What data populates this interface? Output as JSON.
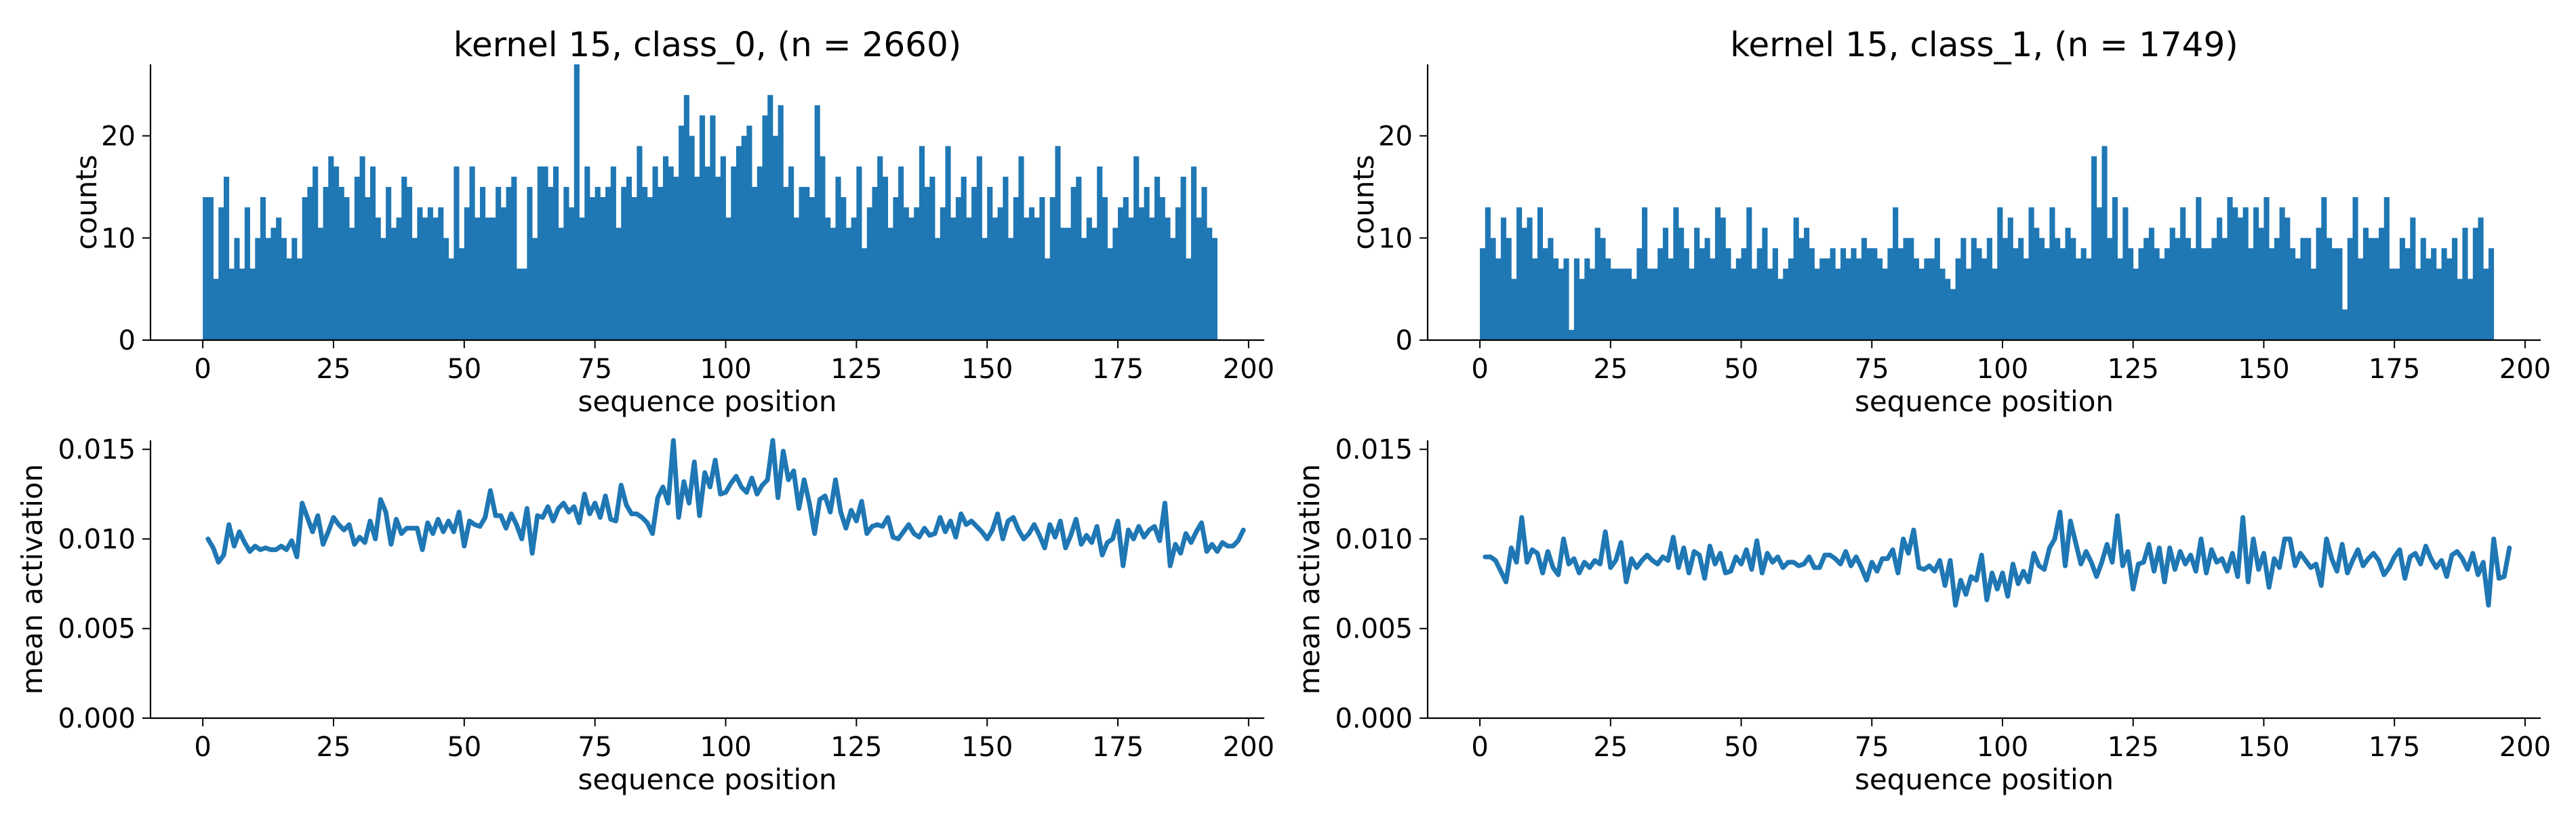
{
  "chart_data": [
    {
      "id": "hist_class0",
      "type": "bar",
      "title": "kernel 15, class_0, (n = 2660)",
      "xlabel": "sequence position",
      "ylabel": "counts",
      "xlim": [
        -10,
        203
      ],
      "ylim": [
        0,
        27
      ],
      "xticks": [
        0,
        25,
        50,
        75,
        100,
        125,
        150,
        175,
        200
      ],
      "yticks": [
        0,
        10,
        20
      ],
      "x_start": 0,
      "bin_width": 1,
      "color": "#1f77b4",
      "values": [
        14,
        14,
        6,
        13,
        16,
        7,
        10,
        7,
        13,
        7,
        10,
        14,
        10,
        11,
        12,
        10,
        8,
        10,
        8,
        14,
        15,
        17,
        11,
        15,
        18,
        17,
        15,
        14,
        11,
        16,
        18,
        14,
        17,
        12,
        10,
        15,
        11,
        12,
        16,
        15,
        10,
        13,
        12,
        13,
        12,
        13,
        10,
        8,
        17,
        9,
        13,
        17,
        12,
        15,
        12,
        12,
        15,
        13,
        15,
        16,
        7,
        7,
        15,
        10,
        17,
        17,
        15,
        17,
        11,
        15,
        13,
        27,
        12,
        17,
        14,
        15,
        14,
        15,
        17,
        11,
        15,
        16,
        14,
        19,
        15,
        14,
        17,
        15,
        18,
        17,
        16,
        21,
        24,
        20,
        16,
        22,
        17,
        22,
        16,
        18,
        12,
        17,
        19,
        20,
        21,
        15,
        17,
        22,
        24,
        20,
        23,
        15,
        17,
        12,
        15,
        15,
        14,
        23,
        18,
        12,
        11,
        16,
        14,
        11,
        12,
        17,
        9,
        13,
        15,
        18,
        16,
        11,
        14,
        17,
        13,
        12,
        13,
        19,
        15,
        16,
        10,
        13,
        19,
        12,
        14,
        16,
        12,
        15,
        18,
        10,
        15,
        12,
        13,
        16,
        10,
        14,
        18,
        12,
        13,
        12,
        14,
        8,
        14,
        19,
        11,
        11,
        15,
        16,
        10,
        12,
        11,
        17,
        14,
        9,
        11,
        13,
        14,
        12,
        18,
        13,
        15,
        12,
        16,
        14,
        12,
        10,
        13,
        16,
        8,
        17,
        12,
        15,
        11,
        10
      ]
    },
    {
      "id": "hist_class1",
      "type": "bar",
      "title": "kernel 15, class_1, (n = 1749)",
      "xlabel": "sequence position",
      "ylabel": "counts",
      "xlim": [
        -10,
        203
      ],
      "ylim": [
        0,
        27
      ],
      "xticks": [
        0,
        25,
        50,
        75,
        100,
        125,
        150,
        175,
        200
      ],
      "yticks": [
        0,
        10,
        20
      ],
      "x_start": 0,
      "bin_width": 1,
      "color": "#1f77b4",
      "values": [
        9,
        13,
        10,
        8,
        12,
        10,
        6,
        13,
        11,
        12,
        8,
        13,
        9,
        10,
        8,
        7,
        8,
        1,
        8,
        6,
        8,
        7,
        11,
        10,
        8,
        7,
        7,
        7,
        7,
        6,
        9,
        13,
        7,
        7,
        9,
        11,
        8,
        13,
        11,
        9,
        7,
        11,
        9,
        10,
        8,
        13,
        12,
        9,
        7,
        8,
        9,
        13,
        7,
        9,
        11,
        7,
        9,
        6,
        7,
        8,
        12,
        10,
        11,
        9,
        7,
        8,
        8,
        9,
        7,
        9,
        8,
        9,
        8,
        10,
        9,
        9,
        8,
        7,
        9,
        13,
        9,
        10,
        10,
        8,
        7,
        8,
        8,
        10,
        7,
        6,
        5,
        8,
        10,
        7,
        10,
        9,
        8,
        10,
        7,
        13,
        10,
        12,
        9,
        10,
        8,
        13,
        11,
        10,
        9,
        13,
        10,
        9,
        11,
        10,
        8,
        9,
        8,
        18,
        13,
        19,
        10,
        14,
        8,
        13,
        9,
        7,
        9,
        10,
        11,
        9,
        8,
        9,
        11,
        10,
        13,
        10,
        9,
        14,
        9,
        9,
        10,
        12,
        10,
        14,
        13,
        12,
        13,
        9,
        13,
        11,
        14,
        9,
        10,
        13,
        12,
        9,
        8,
        10,
        10,
        7,
        11,
        14,
        10,
        9,
        9,
        3,
        10,
        14,
        8,
        11,
        10,
        10,
        11,
        14,
        7,
        7,
        10,
        9,
        12,
        7,
        10,
        8,
        9,
        7,
        9,
        8,
        10,
        6,
        11,
        6,
        11,
        12,
        7,
        9
      ]
    },
    {
      "id": "line_class0",
      "type": "line",
      "xlabel": "sequence position",
      "ylabel": "mean activation",
      "xlim": [
        -10,
        203
      ],
      "ylim": [
        0.0,
        0.0155
      ],
      "xticks": [
        0,
        25,
        50,
        75,
        100,
        125,
        150,
        175,
        200
      ],
      "yticks": [
        0.0,
        0.005,
        0.01,
        0.015
      ],
      "ytick_labels": [
        "0.000",
        "0.005",
        "0.010",
        "0.015"
      ],
      "x_start": 1,
      "color": "#1f77b4",
      "values": [
        0.01,
        0.0095,
        0.0087,
        0.0091,
        0.0108,
        0.0096,
        0.0104,
        0.0098,
        0.0093,
        0.0096,
        0.0094,
        0.0095,
        0.0094,
        0.0094,
        0.0096,
        0.0094,
        0.0099,
        0.009,
        0.012,
        0.0112,
        0.0104,
        0.0113,
        0.0097,
        0.0104,
        0.0112,
        0.0108,
        0.0105,
        0.0108,
        0.0097,
        0.0101,
        0.0098,
        0.011,
        0.01,
        0.0122,
        0.0115,
        0.0097,
        0.0111,
        0.0103,
        0.0106,
        0.0106,
        0.0106,
        0.0094,
        0.0109,
        0.0103,
        0.0111,
        0.0104,
        0.011,
        0.0104,
        0.0115,
        0.0096,
        0.011,
        0.0108,
        0.0107,
        0.0112,
        0.0127,
        0.0113,
        0.0113,
        0.0106,
        0.0114,
        0.0108,
        0.01,
        0.0117,
        0.0092,
        0.0113,
        0.0112,
        0.0118,
        0.011,
        0.0117,
        0.012,
        0.0115,
        0.0118,
        0.0109,
        0.0125,
        0.0114,
        0.012,
        0.0112,
        0.0124,
        0.0111,
        0.011,
        0.013,
        0.0119,
        0.0114,
        0.0114,
        0.0112,
        0.0109,
        0.0103,
        0.0123,
        0.0129,
        0.012,
        0.0155,
        0.0112,
        0.0132,
        0.012,
        0.0143,
        0.0113,
        0.0137,
        0.0129,
        0.0144,
        0.0125,
        0.0126,
        0.0131,
        0.0135,
        0.0129,
        0.0126,
        0.0134,
        0.0125,
        0.013,
        0.0133,
        0.0155,
        0.0123,
        0.0149,
        0.0133,
        0.0138,
        0.0117,
        0.0133,
        0.012,
        0.0103,
        0.0122,
        0.0124,
        0.0115,
        0.0133,
        0.0115,
        0.0106,
        0.0116,
        0.011,
        0.0121,
        0.0103,
        0.0107,
        0.0108,
        0.0107,
        0.0112,
        0.0101,
        0.01,
        0.0104,
        0.0108,
        0.0103,
        0.0101,
        0.0106,
        0.0102,
        0.0103,
        0.0112,
        0.0104,
        0.011,
        0.0101,
        0.0114,
        0.0108,
        0.011,
        0.0107,
        0.0104,
        0.01,
        0.0105,
        0.0114,
        0.01,
        0.011,
        0.0112,
        0.0105,
        0.01,
        0.0103,
        0.0108,
        0.0102,
        0.0095,
        0.0108,
        0.0101,
        0.011,
        0.0095,
        0.0102,
        0.0111,
        0.0097,
        0.0102,
        0.0098,
        0.0107,
        0.0091,
        0.0098,
        0.01,
        0.011,
        0.0085,
        0.0105,
        0.01,
        0.0107,
        0.0101,
        0.0105,
        0.0107,
        0.0099,
        0.012,
        0.0085,
        0.0097,
        0.0092,
        0.0103,
        0.0098,
        0.0104,
        0.0109,
        0.0093,
        0.0097,
        0.0093,
        0.0098,
        0.0096,
        0.0096,
        0.0099,
        0.0105
      ]
    },
    {
      "id": "line_class1",
      "type": "line",
      "xlabel": "sequence position",
      "ylabel": "mean activation",
      "xlim": [
        -10,
        203
      ],
      "ylim": [
        0.0,
        0.0155
      ],
      "xticks": [
        0,
        25,
        50,
        75,
        100,
        125,
        150,
        175,
        200
      ],
      "yticks": [
        0.0,
        0.005,
        0.01,
        0.015
      ],
      "ytick_labels": [
        "0.000",
        "0.005",
        "0.010",
        "0.015"
      ],
      "x_start": 1,
      "color": "#1f77b4",
      "values": [
        0.009,
        0.009,
        0.0088,
        0.0082,
        0.0076,
        0.0095,
        0.0087,
        0.0112,
        0.0087,
        0.0094,
        0.0092,
        0.0081,
        0.0093,
        0.0084,
        0.008,
        0.01,
        0.0086,
        0.0089,
        0.0081,
        0.0087,
        0.0084,
        0.0088,
        0.0086,
        0.0104,
        0.0084,
        0.0088,
        0.0098,
        0.0076,
        0.0089,
        0.0084,
        0.0088,
        0.0091,
        0.0088,
        0.0086,
        0.009,
        0.0088,
        0.0101,
        0.0084,
        0.0095,
        0.0081,
        0.0093,
        0.0091,
        0.0078,
        0.0096,
        0.0086,
        0.0092,
        0.0081,
        0.0082,
        0.009,
        0.0086,
        0.0094,
        0.0083,
        0.0099,
        0.0081,
        0.0092,
        0.0087,
        0.009,
        0.0084,
        0.0087,
        0.0087,
        0.0085,
        0.0086,
        0.009,
        0.0084,
        0.0084,
        0.0091,
        0.0091,
        0.0089,
        0.0086,
        0.0093,
        0.0085,
        0.009,
        0.0084,
        0.0077,
        0.0087,
        0.0082,
        0.0089,
        0.0089,
        0.0094,
        0.0081,
        0.01,
        0.0092,
        0.0105,
        0.0084,
        0.0083,
        0.0085,
        0.0082,
        0.0088,
        0.0074,
        0.0088,
        0.0063,
        0.0077,
        0.0069,
        0.0079,
        0.0077,
        0.0091,
        0.0066,
        0.0081,
        0.0072,
        0.0081,
        0.0068,
        0.0086,
        0.0075,
        0.0082,
        0.0076,
        0.0092,
        0.0085,
        0.0083,
        0.0095,
        0.01,
        0.0115,
        0.0085,
        0.011,
        0.0098,
        0.0086,
        0.0093,
        0.0087,
        0.0079,
        0.0087,
        0.0097,
        0.0087,
        0.0113,
        0.0085,
        0.0093,
        0.0072,
        0.0086,
        0.0087,
        0.0097,
        0.0082,
        0.0095,
        0.0076,
        0.0095,
        0.0083,
        0.0093,
        0.0086,
        0.0091,
        0.0082,
        0.01,
        0.0081,
        0.0094,
        0.0087,
        0.0089,
        0.0082,
        0.0092,
        0.0079,
        0.0112,
        0.0076,
        0.01,
        0.0083,
        0.0092,
        0.0073,
        0.0089,
        0.0084,
        0.01,
        0.01,
        0.0085,
        0.0092,
        0.0088,
        0.0084,
        0.0086,
        0.0074,
        0.01,
        0.0089,
        0.0082,
        0.0097,
        0.0081,
        0.0088,
        0.0094,
        0.0085,
        0.0089,
        0.0092,
        0.0088,
        0.008,
        0.0084,
        0.009,
        0.0094,
        0.0078,
        0.009,
        0.0092,
        0.0086,
        0.0096,
        0.0089,
        0.0084,
        0.0088,
        0.0079,
        0.0091,
        0.0093,
        0.0089,
        0.0083,
        0.0092,
        0.008,
        0.0087,
        0.0063,
        0.01,
        0.0078,
        0.0079,
        0.0095
      ]
    }
  ]
}
